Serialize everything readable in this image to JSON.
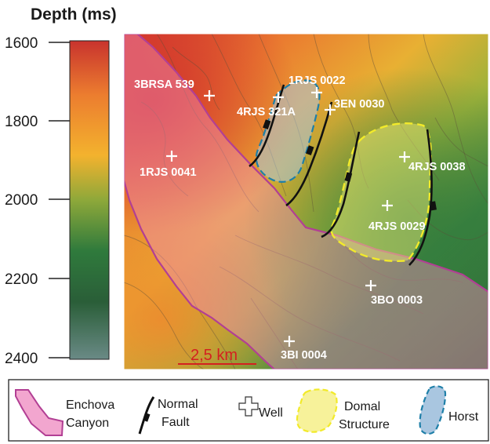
{
  "colorbar": {
    "title": "Depth (ms)",
    "ticks": [
      "1600",
      "1800",
      "2000",
      "2200",
      "2400"
    ],
    "colors": [
      "#c8332e",
      "#ec7d2f",
      "#f3b22e",
      "#8ea83a",
      "#2f7a3c",
      "#2a5e38",
      "#6a8a86"
    ]
  },
  "wells": [
    {
      "label": "3BRSA 539"
    },
    {
      "label": "1RJS 0022"
    },
    {
      "label": "4RJS 321A"
    },
    {
      "label": "3EN 0030"
    },
    {
      "label": "1RJS 0041"
    },
    {
      "label": "4RJS 0038"
    },
    {
      "label": "4RJS 0029"
    },
    {
      "label": "3BO 0003"
    },
    {
      "label": "3BI 0004"
    }
  ],
  "scale_bar": {
    "label": "2,5 km",
    "color": "#d42020"
  },
  "legend": {
    "items": [
      {
        "icon": "canyon-swatch-icon",
        "line1": "Enchova",
        "line2": "Canyon",
        "color": "#f2a6cf"
      },
      {
        "icon": "normal-fault-icon",
        "line1": "Normal",
        "line2": "Fault",
        "color": "#111111"
      },
      {
        "icon": "well-cross-icon",
        "line1": "Well",
        "line2": "",
        "color": "#ffffff"
      },
      {
        "icon": "domal-swatch-icon",
        "line1": "Domal",
        "line2": "Structure",
        "color": "#f7f29a"
      },
      {
        "icon": "horst-swatch-icon",
        "line1": "Horst",
        "line2": "",
        "color": "#a9c6e0"
      }
    ]
  }
}
